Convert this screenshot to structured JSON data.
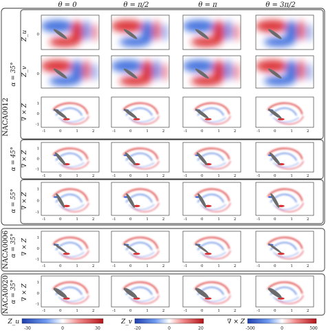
{
  "columns": [
    "θ = 0",
    "θ = π/2",
    "θ = π",
    "θ = 3π/2"
  ],
  "airfoil_labels": [
    "NACA0012",
    "NACA0006",
    "NACA0020"
  ],
  "row_labels": {
    "zu": "Z_u",
    "zv": "Z_v",
    "curl": "∇ × Z"
  },
  "angle_labels": {
    "a35": "α = 35°",
    "a45": "α = 45°",
    "a55": "α = 55°"
  },
  "axes": {
    "y_ticks": [
      "1",
      "0",
      "-1"
    ],
    "x_ticks": [
      "-1",
      "0",
      "1",
      "2"
    ]
  },
  "colorbars": [
    {
      "label": "Z_u",
      "ticks": [
        "-30",
        "0",
        "30"
      ]
    },
    {
      "label": "Z_v",
      "ticks": [
        "-20",
        "0",
        "20"
      ]
    },
    {
      "label": "∇ × Z",
      "ticks": [
        "-500",
        "0",
        "500"
      ]
    }
  ],
  "colors": {
    "positive": "#d7191c",
    "negative": "#2b5fd9",
    "airfoil": "#6b6b6b"
  }
}
